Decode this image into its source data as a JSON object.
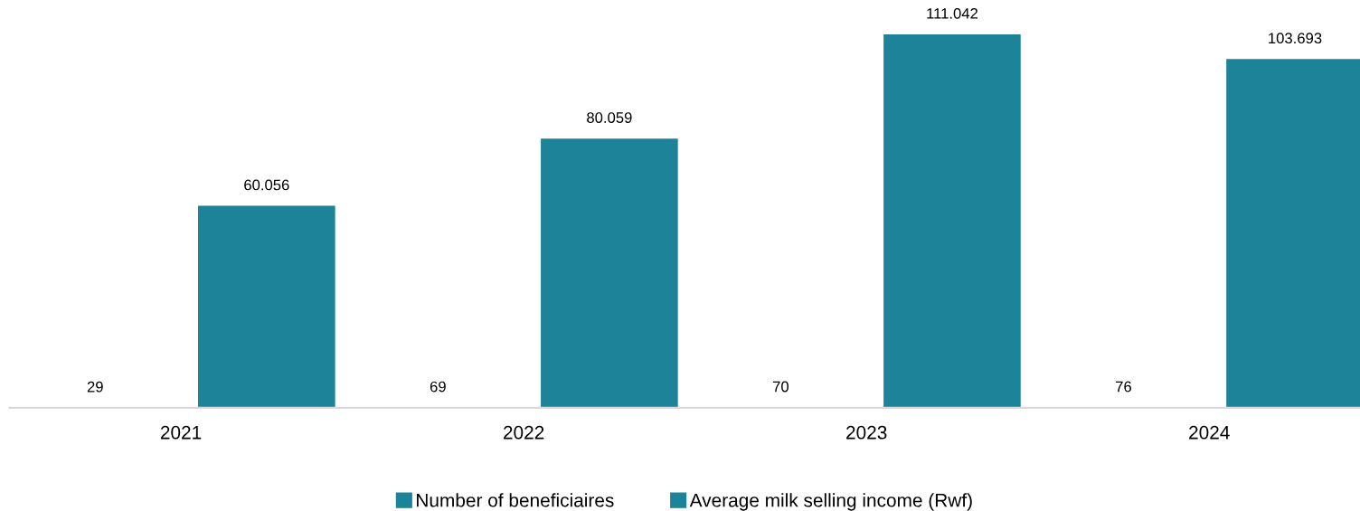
{
  "chart_data": {
    "type": "bar",
    "categories": [
      "2021",
      "2022",
      "2023",
      "2024"
    ],
    "series": [
      {
        "name": "Number of beneficiaires",
        "color": "#1c8399",
        "values": [
          29,
          69,
          70,
          76
        ],
        "value_labels": [
          "29",
          "69",
          "70",
          "76"
        ]
      },
      {
        "name": "Average milk selling income (Rwf)",
        "color": "#1c8399",
        "values": [
          60056,
          80059,
          111042,
          103693
        ],
        "value_labels": [
          "60.056",
          "80.059",
          "111.042",
          "103.693"
        ]
      }
    ],
    "grid": false,
    "legend": "bottom",
    "tick_labels": "x"
  }
}
